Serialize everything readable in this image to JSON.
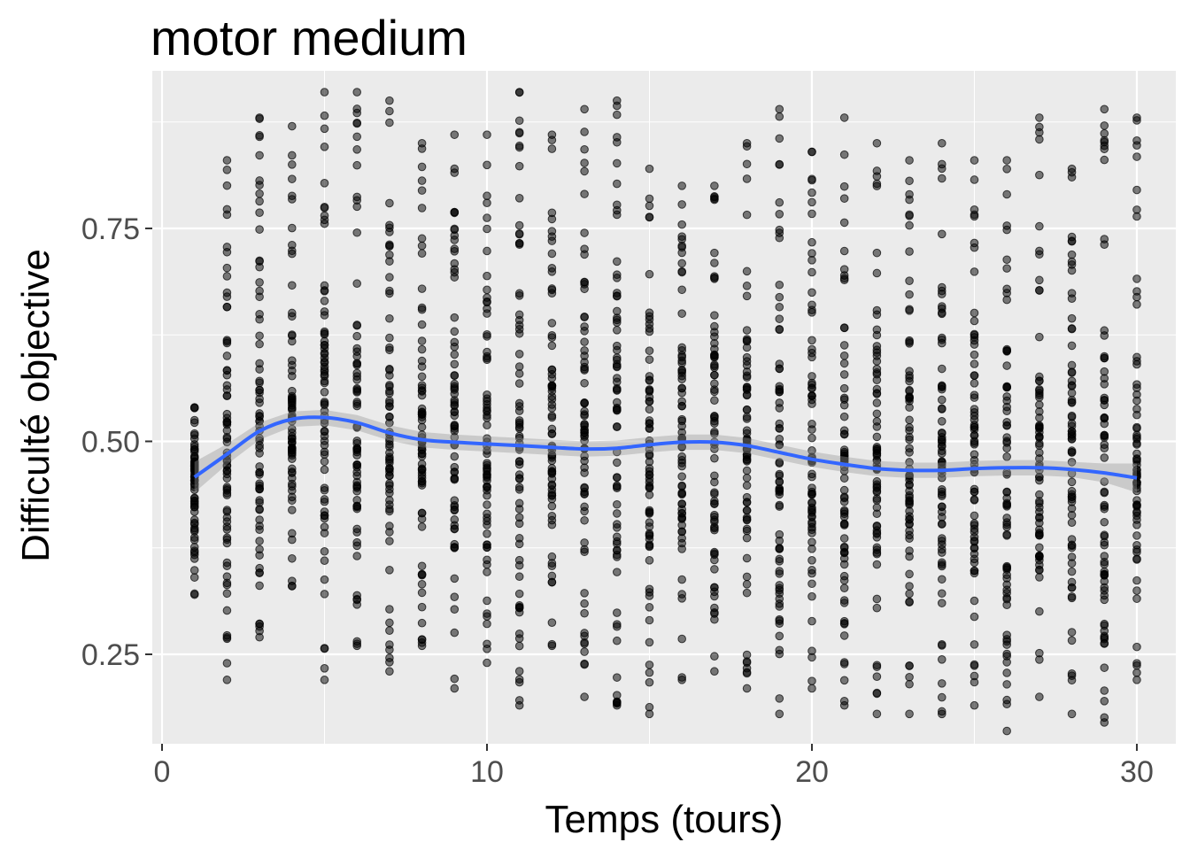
{
  "chart_data": {
    "type": "scatter",
    "title": "motor medium",
    "xlabel": "Temps (tours)",
    "ylabel": "Difficulté objective",
    "xlim": [
      -0.3,
      31.2
    ],
    "ylim": [
      0.145,
      0.935
    ],
    "x_ticks": [
      0,
      10,
      20,
      30
    ],
    "x_tick_labels": [
      "0",
      "10",
      "20",
      "30"
    ],
    "y_ticks": [
      0.25,
      0.5,
      0.75
    ],
    "y_tick_labels": [
      "0.25",
      "0.50",
      "0.75"
    ],
    "grid": true,
    "x_points": [
      1,
      2,
      3,
      4,
      5,
      6,
      7,
      8,
      9,
      10,
      11,
      12,
      13,
      14,
      15,
      16,
      17,
      18,
      19,
      20,
      21,
      22,
      23,
      24,
      25,
      26,
      27,
      28,
      29,
      30
    ],
    "point_ranges": [
      [
        0.32,
        0.54
      ],
      [
        0.22,
        0.83
      ],
      [
        0.27,
        0.88
      ],
      [
        0.33,
        0.87
      ],
      [
        0.22,
        0.91
      ],
      [
        0.26,
        0.91
      ],
      [
        0.23,
        0.9
      ],
      [
        0.26,
        0.85
      ],
      [
        0.21,
        0.86
      ],
      [
        0.24,
        0.86
      ],
      [
        0.19,
        0.91
      ],
      [
        0.26,
        0.86
      ],
      [
        0.2,
        0.89
      ],
      [
        0.19,
        0.9
      ],
      [
        0.18,
        0.82
      ],
      [
        0.22,
        0.8
      ],
      [
        0.23,
        0.8
      ],
      [
        0.21,
        0.85
      ],
      [
        0.18,
        0.89
      ],
      [
        0.21,
        0.84
      ],
      [
        0.19,
        0.88
      ],
      [
        0.18,
        0.85
      ],
      [
        0.18,
        0.83
      ],
      [
        0.18,
        0.85
      ],
      [
        0.19,
        0.83
      ],
      [
        0.16,
        0.83
      ],
      [
        0.2,
        0.88
      ],
      [
        0.18,
        0.82
      ],
      [
        0.17,
        0.89
      ],
      [
        0.22,
        0.88
      ]
    ],
    "points_per_x": 70,
    "smooth": {
      "method": "loess",
      "x": [
        1,
        2,
        3,
        4,
        5,
        6,
        7,
        8,
        9,
        10,
        11,
        12,
        13,
        14,
        15,
        16,
        17,
        18,
        19,
        20,
        21,
        22,
        23,
        24,
        25,
        26,
        27,
        28,
        29,
        30
      ],
      "y": [
        0.458,
        0.485,
        0.512,
        0.526,
        0.528,
        0.522,
        0.51,
        0.502,
        0.499,
        0.497,
        0.495,
        0.493,
        0.491,
        0.492,
        0.496,
        0.499,
        0.499,
        0.495,
        0.487,
        0.479,
        0.473,
        0.468,
        0.466,
        0.466,
        0.468,
        0.469,
        0.469,
        0.467,
        0.463,
        0.457
      ],
      "ci": [
        0.018,
        0.012,
        0.01,
        0.009,
        0.009,
        0.009,
        0.009,
        0.009,
        0.009,
        0.009,
        0.009,
        0.009,
        0.009,
        0.009,
        0.009,
        0.009,
        0.009,
        0.009,
        0.009,
        0.009,
        0.009,
        0.009,
        0.009,
        0.009,
        0.009,
        0.009,
        0.009,
        0.009,
        0.011,
        0.017
      ]
    },
    "colors": {
      "panel": "#EBEBEB",
      "grid_major": "#FFFFFF",
      "point": "#000000",
      "smooth_line": "#3366FF",
      "ribbon": "#999999"
    }
  }
}
